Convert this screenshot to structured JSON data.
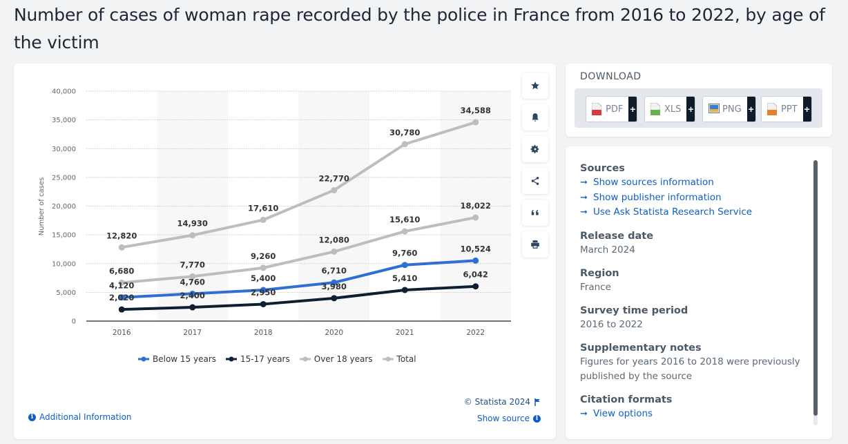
{
  "page": {
    "title": "Number of cases of woman rape recorded by the police in France from 2016 to 2022, by age of the victim"
  },
  "chart_data": {
    "type": "line",
    "title": "Number of cases of woman rape recorded by the police in France from 2016 to 2022, by age of the victim",
    "xlabel": "",
    "ylabel": "Number of cases",
    "categories": [
      "2016",
      "2017",
      "2018",
      "2020",
      "2021",
      "2022"
    ],
    "ylim": [
      0,
      40000
    ],
    "yticks": [
      0,
      5000,
      10000,
      15000,
      20000,
      25000,
      30000,
      35000,
      40000
    ],
    "ytick_labels": [
      "0",
      "5,000",
      "10,000",
      "15,000",
      "20,000",
      "25,000",
      "30,000",
      "35,000",
      "40,000"
    ],
    "grid": true,
    "legend_position": "bottom",
    "series": [
      {
        "name": "Below 15 years",
        "color": "#2f6fd3",
        "values": [
          4120,
          4760,
          5400,
          6710,
          9760,
          10524
        ],
        "labels": [
          "4,120",
          "4,760",
          "5,400",
          "6,710",
          "9,760",
          "10,524"
        ]
      },
      {
        "name": "15-17 years",
        "color": "#0f1f33",
        "values": [
          2020,
          2400,
          2950,
          3980,
          5410,
          6042
        ],
        "labels": [
          "2,020",
          "2,400",
          "2,950",
          "3,980",
          "5,410",
          "6,042"
        ]
      },
      {
        "name": "Over 18 years",
        "color": "#bdbdbd",
        "values": [
          6680,
          7770,
          9260,
          12080,
          15610,
          18022
        ],
        "labels": [
          "6,680",
          "7,770",
          "9,260",
          "12,080",
          "15,610",
          "18,022"
        ]
      },
      {
        "name": "Total",
        "color": "#bdbdbd",
        "values": [
          12820,
          14930,
          17610,
          22770,
          30780,
          34588
        ],
        "labels": [
          "12,820",
          "14,930",
          "17,610",
          "22,770",
          "30,780",
          "34,588"
        ]
      }
    ]
  },
  "toolbar": {
    "icons": [
      "star-icon",
      "bell-icon",
      "gear-icon",
      "share-icon",
      "quote-icon",
      "print-icon"
    ]
  },
  "chart_footer": {
    "copyright": "© Statista 2024",
    "additional_info": "Additional Information",
    "show_source": "Show source"
  },
  "download": {
    "heading": "DOWNLOAD",
    "buttons": [
      {
        "label": "PDF",
        "color": "#d93a3a"
      },
      {
        "label": "XLS",
        "color": "#6ab04c"
      },
      {
        "label": "PNG",
        "color": "#3d7cc9"
      },
      {
        "label": "PPT",
        "color": "#e8802a"
      }
    ],
    "plus": "+"
  },
  "info": {
    "sources_heading": "Sources",
    "links": [
      "Show sources information",
      "Show publisher information",
      "Use Ask Statista Research Service"
    ],
    "release_heading": "Release date",
    "release_value": "March 2024",
    "region_heading": "Region",
    "region_value": "France",
    "period_heading": "Survey time period",
    "period_value": "2016 to 2022",
    "notes_heading": "Supplementary notes",
    "notes_value": "Figures for years 2016 to 2018 were previously published by the source",
    "citation_heading": "Citation formats",
    "citation_link": "View options",
    "arrow": "➞"
  }
}
